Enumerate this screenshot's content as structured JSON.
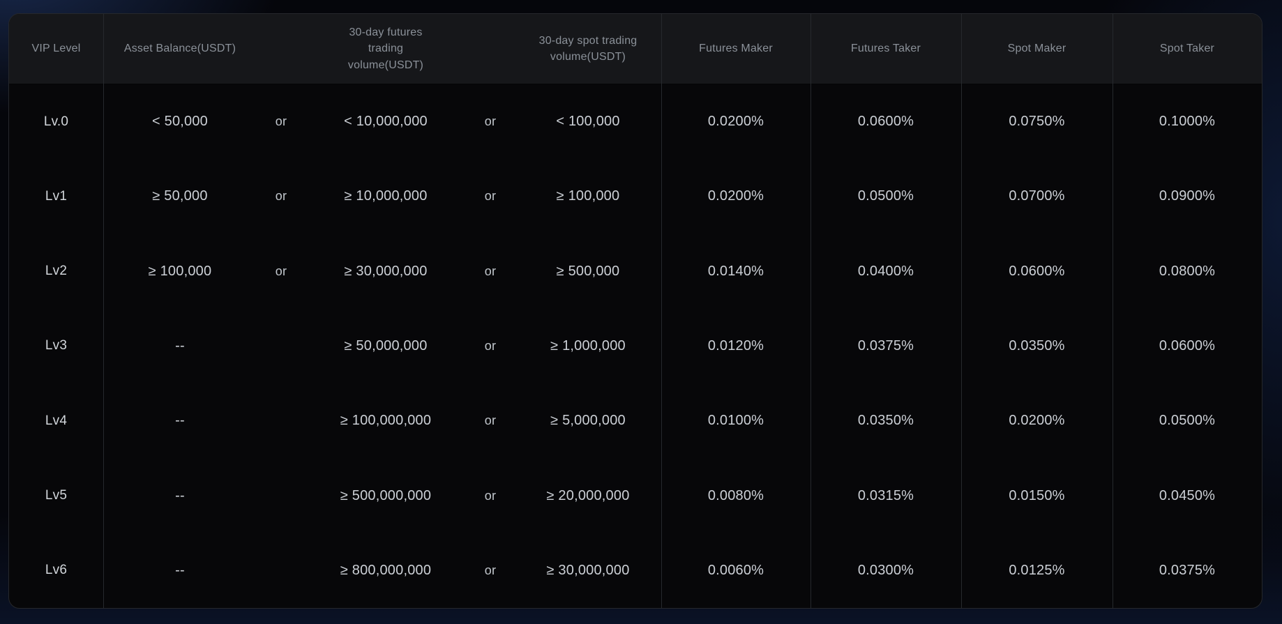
{
  "table": {
    "headers": {
      "vip_level": "VIP Level",
      "asset_balance": "Asset Balance(USDT)",
      "futures_volume": "30-day futures trading volume(USDT)",
      "spot_volume": "30-day spot trading volume(USDT)",
      "futures_maker": "Futures Maker",
      "futures_taker": "Futures Taker",
      "spot_maker": "Spot Maker",
      "spot_taker": "Spot Taker"
    },
    "rows": [
      {
        "level": "Lv.0",
        "asset_balance": "< 50,000",
        "or1": "or",
        "futures_volume": "< 10,000,000",
        "or2": "or",
        "spot_volume": "< 100,000",
        "futures_maker": "0.0200%",
        "futures_taker": "0.0600%",
        "spot_maker": "0.0750%",
        "spot_taker": "0.1000%"
      },
      {
        "level": "Lv1",
        "asset_balance": "≥ 50,000",
        "or1": "or",
        "futures_volume": "≥ 10,000,000",
        "or2": "or",
        "spot_volume": "≥ 100,000",
        "futures_maker": "0.0200%",
        "futures_taker": "0.0500%",
        "spot_maker": "0.0700%",
        "spot_taker": "0.0900%"
      },
      {
        "level": "Lv2",
        "asset_balance": "≥ 100,000",
        "or1": "or",
        "futures_volume": "≥ 30,000,000",
        "or2": "or",
        "spot_volume": "≥ 500,000",
        "futures_maker": "0.0140%",
        "futures_taker": "0.0400%",
        "spot_maker": "0.0600%",
        "spot_taker": "0.0800%"
      },
      {
        "level": "Lv3",
        "asset_balance": "--",
        "or1": "",
        "futures_volume": "≥ 50,000,000",
        "or2": "or",
        "spot_volume": "≥ 1,000,000",
        "futures_maker": "0.0120%",
        "futures_taker": "0.0375%",
        "spot_maker": "0.0350%",
        "spot_taker": "0.0600%"
      },
      {
        "level": "Lv4",
        "asset_balance": "--",
        "or1": "",
        "futures_volume": "≥ 100,000,000",
        "or2": "or",
        "spot_volume": "≥ 5,000,000",
        "futures_maker": "0.0100%",
        "futures_taker": "0.0350%",
        "spot_maker": "0.0200%",
        "spot_taker": "0.0500%"
      },
      {
        "level": "Lv5",
        "asset_balance": "--",
        "or1": "",
        "futures_volume": "≥ 500,000,000",
        "or2": "or",
        "spot_volume": "≥ 20,000,000",
        "futures_maker": "0.0080%",
        "futures_taker": "0.0315%",
        "spot_maker": "0.0150%",
        "spot_taker": "0.0450%"
      },
      {
        "level": "Lv6",
        "asset_balance": "--",
        "or1": "",
        "futures_volume": "≥ 800,000,000",
        "or2": "or",
        "spot_volume": "≥ 30,000,000",
        "futures_maker": "0.0060%",
        "futures_taker": "0.0300%",
        "spot_maker": "0.0125%",
        "spot_taker": "0.0375%"
      }
    ]
  },
  "colors": {
    "page_background": "#05060b",
    "background_glow_blue": "#28447f",
    "table_background": "#070709",
    "header_background": "#16171a",
    "table_border": "#26282c",
    "divider": "#26292d",
    "header_text": "#8b9199",
    "body_text": "#ccd0d6"
  }
}
